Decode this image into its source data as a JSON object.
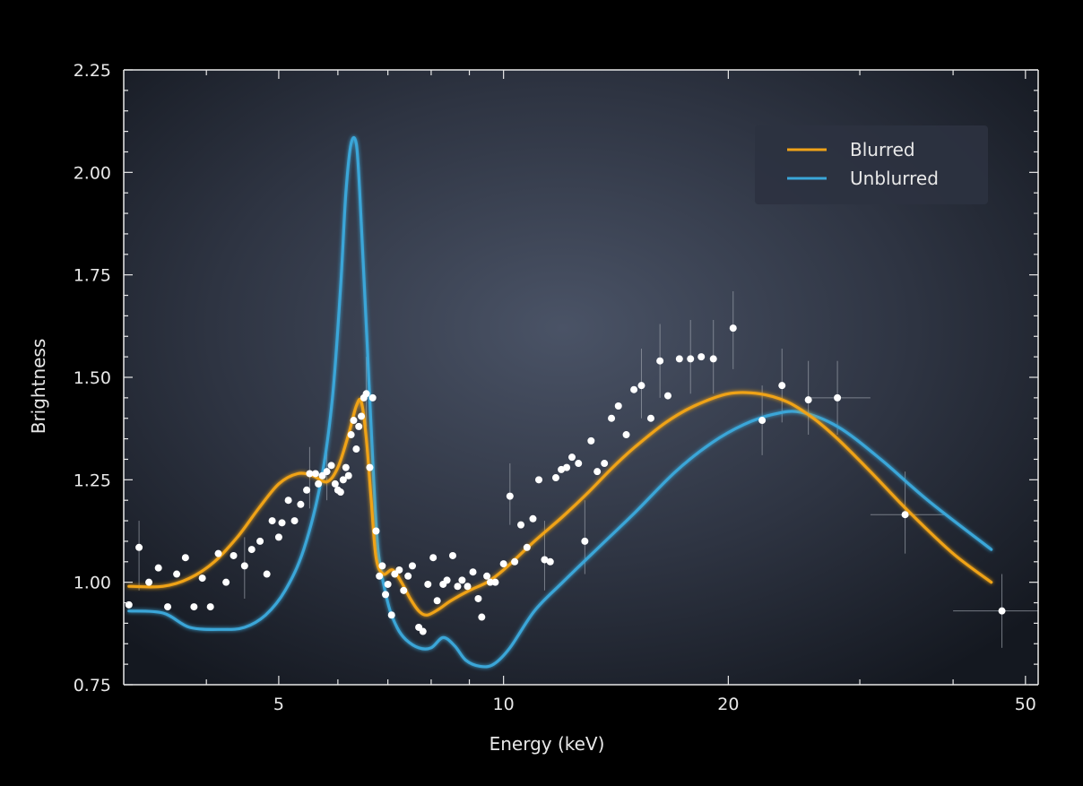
{
  "chart_data": {
    "type": "line",
    "title": "",
    "xlabel": "Energy (keV)",
    "ylabel": "Brightness",
    "xscale": "log",
    "xlim": [
      3.1,
      52
    ],
    "ylim": [
      0.75,
      2.25
    ],
    "xticks": [
      {
        "value": 5,
        "label": "5"
      },
      {
        "value": 10,
        "label": "10"
      },
      {
        "value": 20,
        "label": "20"
      },
      {
        "value": 50,
        "label": "50"
      }
    ],
    "yticks": [
      {
        "value": 0.75,
        "label": "0.75"
      },
      {
        "value": 1.0,
        "label": "1.00"
      },
      {
        "value": 1.25,
        "label": "1.25"
      },
      {
        "value": 1.5,
        "label": "1.50"
      },
      {
        "value": 1.75,
        "label": "1.75"
      },
      {
        "value": 2.0,
        "label": "2.00"
      },
      {
        "value": 2.25,
        "label": "2.25"
      }
    ],
    "grid": false,
    "legend_position": "top-right",
    "series": [
      {
        "name": "Blurred",
        "color": "#f0a318",
        "x": [
          3.15,
          3.5,
          3.8,
          4.1,
          4.4,
          4.7,
          5.0,
          5.3,
          5.55,
          5.8,
          6.0,
          6.2,
          6.35,
          6.45,
          6.55,
          6.65,
          6.75,
          6.9,
          7.1,
          7.3,
          7.5,
          7.7,
          7.9,
          8.2,
          8.5,
          9.0,
          9.5,
          10.0,
          11.0,
          12.0,
          13.0,
          14.0,
          15.0,
          16.5,
          18.0,
          20.0,
          22.0,
          24.0,
          26.0,
          28.0,
          31.0,
          35.0,
          40.0,
          45.0
        ],
        "y": [
          0.99,
          0.99,
          1.01,
          1.05,
          1.11,
          1.18,
          1.24,
          1.265,
          1.26,
          1.245,
          1.28,
          1.36,
          1.43,
          1.44,
          1.35,
          1.2,
          1.06,
          1.02,
          1.03,
          1.0,
          0.96,
          0.93,
          0.92,
          0.935,
          0.955,
          0.98,
          1.0,
          1.03,
          1.1,
          1.16,
          1.22,
          1.28,
          1.33,
          1.39,
          1.43,
          1.46,
          1.46,
          1.44,
          1.4,
          1.35,
          1.27,
          1.17,
          1.07,
          1.0
        ]
      },
      {
        "name": "Unblurred",
        "color": "#3aa6d8",
        "x": [
          3.15,
          3.5,
          3.8,
          4.2,
          4.5,
          4.8,
          5.1,
          5.4,
          5.7,
          5.9,
          6.05,
          6.15,
          6.25,
          6.35,
          6.42,
          6.5,
          6.6,
          6.7,
          6.8,
          7.0,
          7.2,
          7.4,
          7.7,
          8.0,
          8.3,
          8.6,
          8.9,
          9.3,
          9.7,
          10.2,
          11.0,
          12.0,
          13.5,
          15.0,
          17.0,
          19.0,
          21.0,
          23.0,
          25.0,
          28.0,
          32.0,
          37.0,
          45.0
        ],
        "y": [
          0.93,
          0.925,
          0.89,
          0.885,
          0.89,
          0.92,
          0.98,
          1.08,
          1.25,
          1.45,
          1.72,
          1.95,
          2.07,
          2.07,
          1.95,
          1.75,
          1.5,
          1.25,
          1.07,
          0.95,
          0.89,
          0.86,
          0.84,
          0.84,
          0.865,
          0.845,
          0.81,
          0.795,
          0.8,
          0.84,
          0.93,
          1.0,
          1.09,
          1.17,
          1.27,
          1.34,
          1.385,
          1.41,
          1.415,
          1.38,
          1.3,
          1.2,
          1.08
        ]
      }
    ],
    "scatter_color": "#ffffff",
    "data_points": [
      [
        3.15,
        0.945
      ],
      [
        3.25,
        1.085
      ],
      [
        3.35,
        1.0
      ],
      [
        3.45,
        1.035
      ],
      [
        3.55,
        0.94
      ],
      [
        3.65,
        1.02
      ],
      [
        3.75,
        1.06
      ],
      [
        3.85,
        0.94
      ],
      [
        3.95,
        1.01
      ],
      [
        4.05,
        0.94
      ],
      [
        4.15,
        1.07
      ],
      [
        4.25,
        1.0
      ],
      [
        4.35,
        1.065
      ],
      [
        4.5,
        1.04
      ],
      [
        4.6,
        1.08
      ],
      [
        4.72,
        1.1
      ],
      [
        4.82,
        1.02
      ],
      [
        4.9,
        1.15
      ],
      [
        5.0,
        1.11
      ],
      [
        5.05,
        1.145
      ],
      [
        5.15,
        1.2
      ],
      [
        5.25,
        1.15
      ],
      [
        5.35,
        1.19
      ],
      [
        5.45,
        1.225
      ],
      [
        5.5,
        1.265
      ],
      [
        5.6,
        1.265
      ],
      [
        5.65,
        1.24
      ],
      [
        5.72,
        1.26
      ],
      [
        5.8,
        1.27
      ],
      [
        5.88,
        1.285
      ],
      [
        5.95,
        1.24
      ],
      [
        6.0,
        1.225
      ],
      [
        6.05,
        1.22
      ],
      [
        6.1,
        1.25
      ],
      [
        6.15,
        1.28
      ],
      [
        6.2,
        1.26
      ],
      [
        6.25,
        1.36
      ],
      [
        6.3,
        1.395
      ],
      [
        6.35,
        1.325
      ],
      [
        6.4,
        1.38
      ],
      [
        6.45,
        1.405
      ],
      [
        6.5,
        1.45
      ],
      [
        6.55,
        1.46
      ],
      [
        6.62,
        1.28
      ],
      [
        6.68,
        1.45
      ],
      [
        6.75,
        1.125
      ],
      [
        6.82,
        1.015
      ],
      [
        6.88,
        1.04
      ],
      [
        6.95,
        0.97
      ],
      [
        7.0,
        0.995
      ],
      [
        7.08,
        0.92
      ],
      [
        7.15,
        1.02
      ],
      [
        7.25,
        1.03
      ],
      [
        7.35,
        0.98
      ],
      [
        7.45,
        1.015
      ],
      [
        7.55,
        1.04
      ],
      [
        7.7,
        0.89
      ],
      [
        7.8,
        0.88
      ],
      [
        7.92,
        0.995
      ],
      [
        8.05,
        1.06
      ],
      [
        8.15,
        0.955
      ],
      [
        8.3,
        0.995
      ],
      [
        8.4,
        1.005
      ],
      [
        8.55,
        1.065
      ],
      [
        8.68,
        0.99
      ],
      [
        8.8,
        1.005
      ],
      [
        8.95,
        0.99
      ],
      [
        9.1,
        1.025
      ],
      [
        9.25,
        0.96
      ],
      [
        9.35,
        0.915
      ],
      [
        9.5,
        1.015
      ],
      [
        9.6,
        1.0
      ],
      [
        9.75,
        1.0
      ],
      [
        10.0,
        1.045
      ],
      [
        10.2,
        1.21
      ],
      [
        10.35,
        1.05
      ],
      [
        10.55,
        1.14
      ],
      [
        10.75,
        1.085
      ],
      [
        10.95,
        1.155
      ],
      [
        11.15,
        1.25
      ],
      [
        11.35,
        1.055
      ],
      [
        11.55,
        1.05
      ],
      [
        11.75,
        1.255
      ],
      [
        11.95,
        1.275
      ],
      [
        12.15,
        1.28
      ],
      [
        12.35,
        1.305
      ],
      [
        12.6,
        1.29
      ],
      [
        12.85,
        1.1
      ],
      [
        13.1,
        1.345
      ],
      [
        13.35,
        1.27
      ],
      [
        13.65,
        1.29
      ],
      [
        13.95,
        1.4
      ],
      [
        14.25,
        1.43
      ],
      [
        14.6,
        1.36
      ],
      [
        14.95,
        1.47
      ],
      [
        15.3,
        1.48
      ],
      [
        15.75,
        1.4
      ],
      [
        16.2,
        1.54
      ],
      [
        16.6,
        1.455
      ],
      [
        17.2,
        1.545
      ],
      [
        17.8,
        1.545
      ],
      [
        18.4,
        1.55
      ],
      [
        19.1,
        1.545
      ],
      [
        20.3,
        1.62
      ],
      [
        22.2,
        1.395
      ],
      [
        23.6,
        1.48
      ],
      [
        25.6,
        1.445
      ],
      [
        28.0,
        1.45
      ],
      [
        34.5,
        1.165
      ],
      [
        46.5,
        0.93
      ]
    ],
    "error_bars": [
      [
        3.25,
        0.98,
        1.15
      ],
      [
        4.5,
        0.96,
        1.11
      ],
      [
        5.5,
        1.18,
        1.33
      ],
      [
        5.8,
        1.2,
        1.34
      ],
      [
        6.55,
        1.38,
        1.55
      ],
      [
        10.2,
        1.14,
        1.29
      ],
      [
        11.35,
        0.98,
        1.15
      ],
      [
        12.85,
        1.02,
        1.2
      ],
      [
        15.3,
        1.4,
        1.57
      ],
      [
        16.2,
        1.45,
        1.63
      ],
      [
        17.8,
        1.46,
        1.64
      ],
      [
        19.1,
        1.46,
        1.64
      ],
      [
        20.3,
        1.52,
        1.71
      ],
      [
        22.2,
        1.31,
        1.48
      ],
      [
        23.6,
        1.39,
        1.57
      ],
      [
        25.6,
        1.36,
        1.54
      ],
      [
        28.0,
        1.36,
        1.54
      ],
      [
        34.5,
        1.07,
        1.27
      ],
      [
        46.5,
        0.84,
        1.02
      ]
    ],
    "x_error_bars": [
      [
        28.0,
        25.5,
        31.0,
        1.45
      ],
      [
        34.5,
        31.0,
        39.0,
        1.165
      ],
      [
        46.5,
        40.0,
        52.0,
        0.93
      ]
    ]
  }
}
